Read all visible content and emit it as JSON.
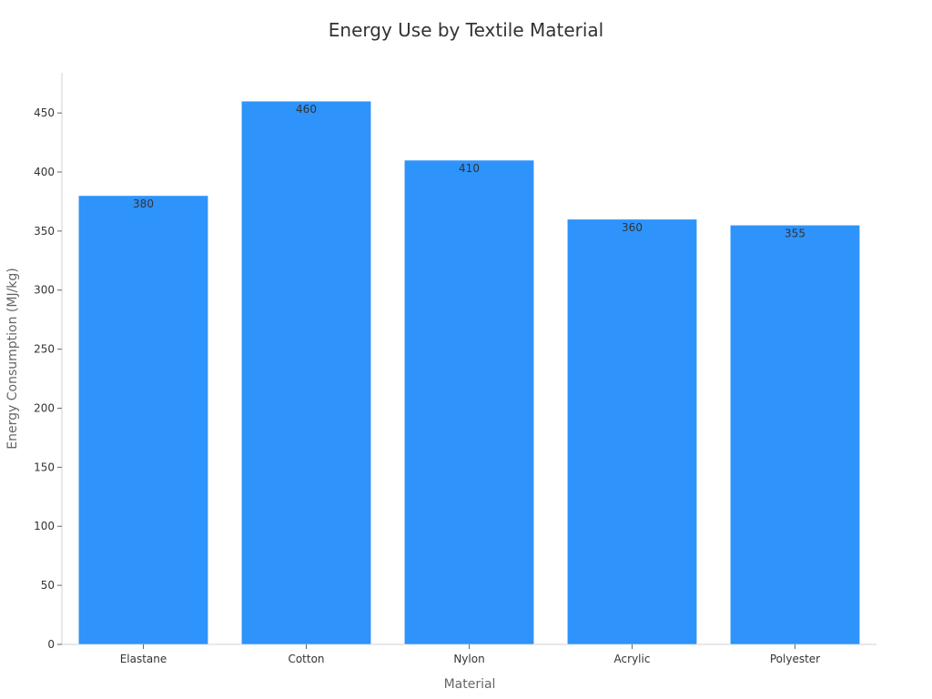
{
  "chart_data": {
    "type": "bar",
    "title": "Energy Use by Textile Material",
    "xlabel": "Material",
    "ylabel": "Energy Consumption (MJ/kg)",
    "categories": [
      "Elastane",
      "Cotton",
      "Nylon",
      "Acrylic",
      "Polyester"
    ],
    "values": [
      380,
      460,
      410,
      360,
      355
    ],
    "ylim": [
      0,
      484
    ],
    "yticks": [
      0,
      50,
      100,
      150,
      200,
      250,
      300,
      350,
      400,
      450
    ],
    "grid": false,
    "legend": "none",
    "bar_color": "#2e93fa",
    "data_labels": true
  }
}
